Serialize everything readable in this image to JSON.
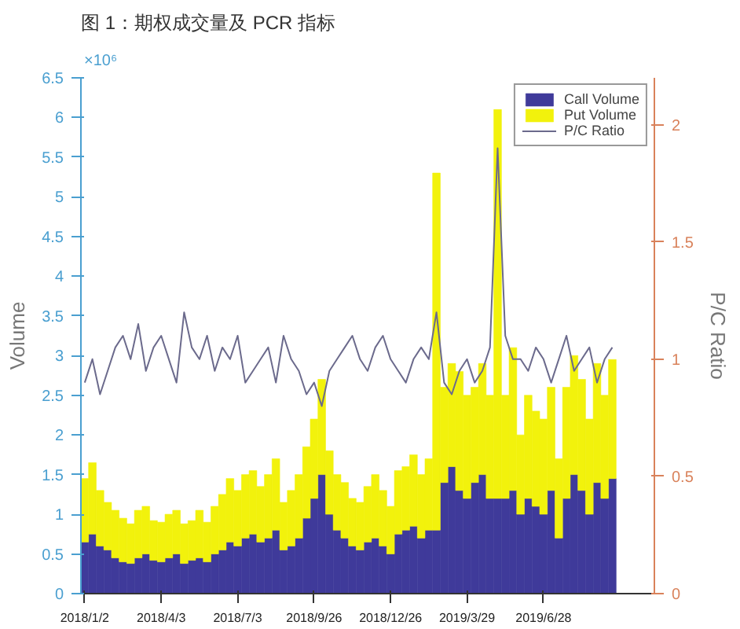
{
  "chart_data": {
    "type": "bar",
    "stacked": true,
    "title": "图 1：期权成交量及 PCR 指标",
    "ylabel": "Volume",
    "y2label": "P/C Ratio",
    "annotations": [
      "×10⁶"
    ],
    "categories": [
      "2018/1/2",
      null,
      null,
      null,
      null,
      null,
      null,
      null,
      null,
      null,
      "2018/4/3",
      null,
      null,
      null,
      null,
      null,
      null,
      null,
      null,
      null,
      "2018/7/3",
      null,
      null,
      null,
      null,
      null,
      null,
      null,
      null,
      null,
      "2018/9/26",
      null,
      null,
      null,
      null,
      null,
      null,
      null,
      null,
      null,
      "2018/12/26",
      null,
      null,
      null,
      null,
      null,
      null,
      null,
      null,
      null,
      "2019/3/29",
      null,
      null,
      null,
      null,
      null,
      null,
      null,
      null,
      null,
      "2019/6/28",
      null,
      null,
      null,
      null,
      null,
      null,
      null,
      null,
      null
    ],
    "ylim": [
      0,
      6.5
    ],
    "yticks": [
      0,
      0.5,
      1,
      1.5,
      2,
      2.5,
      3,
      3.5,
      4,
      4.5,
      5,
      5.5,
      6,
      6.5
    ],
    "y2lim": [
      0,
      2.2
    ],
    "y2ticks": [
      0,
      0.5,
      1,
      1.5,
      2
    ],
    "grid": false,
    "legend": "top right",
    "series": [
      {
        "name": "Call Volume",
        "color": "#3f3a9a",
        "values": [
          0.65,
          0.75,
          0.6,
          0.55,
          0.45,
          0.4,
          0.38,
          0.45,
          0.5,
          0.42,
          0.4,
          0.45,
          0.5,
          0.38,
          0.42,
          0.45,
          0.4,
          0.5,
          0.55,
          0.65,
          0.6,
          0.7,
          0.75,
          0.65,
          0.7,
          0.8,
          0.55,
          0.6,
          0.7,
          0.95,
          1.2,
          1.5,
          1.0,
          0.8,
          0.7,
          0.6,
          0.55,
          0.65,
          0.7,
          0.6,
          0.5,
          0.75,
          0.8,
          0.85,
          0.7,
          0.8,
          0.8,
          1.4,
          1.6,
          1.3,
          1.2,
          1.4,
          1.5,
          1.2,
          1.2,
          1.2,
          1.3,
          1.0,
          1.2,
          1.1,
          1.0,
          1.3,
          0.7,
          1.2,
          1.5,
          1.3,
          1.0,
          1.4,
          1.2,
          1.45
        ]
      },
      {
        "name": "Put Volume",
        "color": "#f2f20c",
        "values": [
          0.8,
          0.9,
          0.7,
          0.6,
          0.6,
          0.55,
          0.5,
          0.6,
          0.6,
          0.5,
          0.5,
          0.55,
          0.55,
          0.5,
          0.5,
          0.6,
          0.5,
          0.6,
          0.7,
          0.8,
          0.7,
          0.8,
          0.8,
          0.7,
          0.8,
          0.9,
          0.6,
          0.7,
          0.8,
          0.9,
          1.0,
          1.2,
          0.8,
          0.7,
          0.7,
          0.6,
          0.6,
          0.7,
          0.8,
          0.7,
          0.6,
          0.8,
          0.8,
          0.9,
          0.8,
          0.9,
          4.5,
          1.2,
          1.3,
          1.5,
          1.3,
          1.2,
          1.4,
          1.3,
          4.9,
          1.3,
          1.8,
          1.0,
          1.3,
          1.2,
          1.2,
          1.3,
          1.0,
          1.4,
          1.5,
          1.4,
          1.2,
          1.5,
          1.3,
          1.5
        ]
      },
      {
        "name": "P/C Ratio",
        "type": "line",
        "axis": "y2",
        "color": "#6b6a8c",
        "values": [
          0.9,
          1.0,
          0.85,
          0.95,
          1.05,
          1.1,
          1.0,
          1.15,
          0.95,
          1.05,
          1.1,
          1.0,
          0.9,
          1.2,
          1.05,
          1.0,
          1.1,
          0.95,
          1.05,
          1.0,
          1.1,
          0.9,
          0.95,
          1.0,
          1.05,
          0.9,
          1.1,
          1.0,
          0.95,
          0.85,
          0.9,
          0.8,
          0.95,
          1.0,
          1.05,
          1.1,
          1.0,
          0.95,
          1.05,
          1.1,
          1.0,
          0.95,
          0.9,
          1.0,
          1.05,
          1.0,
          1.2,
          0.9,
          0.85,
          0.95,
          1.0,
          0.9,
          0.95,
          1.05,
          1.9,
          1.1,
          1.0,
          1.0,
          0.95,
          1.05,
          1.0,
          0.9,
          1.0,
          1.1,
          0.95,
          1.0,
          1.05,
          0.9,
          1.0,
          1.05
        ]
      }
    ]
  }
}
